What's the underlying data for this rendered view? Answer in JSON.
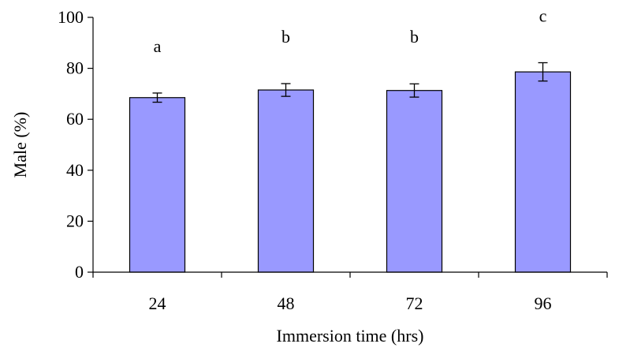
{
  "chart_data": {
    "type": "bar",
    "categories": [
      "24",
      "48",
      "72",
      "96"
    ],
    "values": [
      68.5,
      71.5,
      71.3,
      78.6
    ],
    "errors": [
      1.8,
      2.5,
      2.6,
      3.6
    ],
    "significance_labels": [
      "a",
      "b",
      "b",
      "c"
    ],
    "xlabel": "Immersion time (hrs)",
    "ylabel": "Male (%)",
    "ylim": [
      0,
      100
    ],
    "yticks": [
      0,
      20,
      40,
      60,
      80,
      100
    ],
    "grid": false,
    "legend": "none",
    "bar_color": "#9999ff",
    "bar_edge_color": "#000000"
  }
}
